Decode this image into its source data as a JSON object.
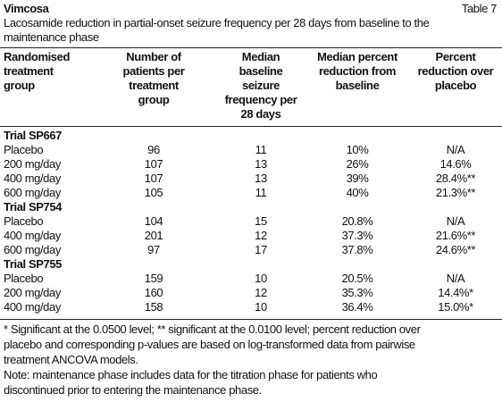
{
  "header": {
    "title": "Vimcosa",
    "table_label": "Table 7",
    "caption": [
      "Lacosamide reduction in partial-onset seizure frequency per 28 days from baseline to the",
      "maintenance phase"
    ]
  },
  "table": {
    "columns": [
      [
        "Randomised",
        "treatment",
        "group"
      ],
      [
        "Number of",
        "patients per",
        "treatment",
        "group"
      ],
      [
        "Median",
        "baseline",
        "seizure",
        "frequency per",
        "28 days"
      ],
      [
        "Median percent",
        "reduction from",
        "baseline"
      ],
      [
        "Percent",
        "reduction over",
        "placebo"
      ]
    ],
    "groups": [
      {
        "name": "Trial SP667",
        "rows": [
          [
            "Placebo",
            "96",
            "11",
            "10%",
            "N/A"
          ],
          [
            "200 mg/day",
            "107",
            "13",
            "26%",
            "14.6%"
          ],
          [
            "400 mg/day",
            "107",
            "13",
            "39%",
            "28.4%**"
          ],
          [
            "600 mg/day",
            "105",
            "11",
            "40%",
            "21.3%**"
          ]
        ]
      },
      {
        "name": "Trial SP754",
        "rows": [
          [
            "Placebo",
            "104",
            "15",
            "20.8%",
            "N/A"
          ],
          [
            "400 mg/day",
            "201",
            "12",
            "37.3%",
            "21.6%**"
          ],
          [
            "600 mg/day",
            "97",
            "17",
            "37.8%",
            "24.6%**"
          ]
        ]
      },
      {
        "name": "Trial SP755",
        "rows": [
          [
            "Placebo",
            "159",
            "10",
            "20.5%",
            "N/A"
          ],
          [
            "200 mg/day",
            "160",
            "12",
            "35.3%",
            "14.4%*"
          ],
          [
            "400 mg/day",
            "158",
            "10",
            "36.4%",
            "15.0%*"
          ]
        ]
      }
    ]
  },
  "footnotes": [
    [
      "* Significant at the 0.0500 level; ** significant at the 0.0100 level; percent reduction over",
      "placebo and corresponding p-values are based on log-transformed data from pairwise",
      "treatment ANCOVA models."
    ],
    [
      "Note: maintenance phase includes data for the titration phase for patients who",
      "discontinued prior to entering the maintenance phase."
    ]
  ]
}
